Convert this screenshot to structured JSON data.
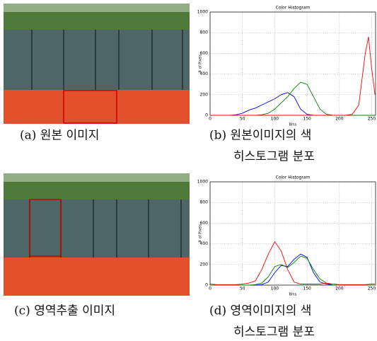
{
  "captions": {
    "a": "(a) 원본 이미지",
    "b": [
      "(b) 원본이미지의 색",
      "히스토그램 분포"
    ],
    "c": "(c) 영역추출 이미지",
    "d": [
      "(d) 영역이미지의 색",
      "히스토그램 분포"
    ]
  },
  "chart_data": [
    {
      "type": "line",
      "title": "Color Histogram",
      "x_label": "Bins",
      "y_label": "# of Pixels",
      "x": [
        0,
        10,
        20,
        30,
        40,
        50,
        60,
        70,
        80,
        90,
        100,
        110,
        120,
        130,
        140,
        150,
        160,
        170,
        180,
        190,
        200,
        210,
        220,
        230,
        240,
        245,
        250,
        255
      ],
      "xlim": [
        0,
        256
      ],
      "xticks": [
        0,
        50,
        100,
        150,
        200,
        250
      ],
      "ylim": [
        0,
        1000
      ],
      "yticks": [
        0,
        200,
        400,
        600,
        800,
        1000
      ],
      "grid": true,
      "series": [
        {
          "color": "#0000ff",
          "values": [
            0,
            0,
            0,
            0,
            5,
            20,
            50,
            70,
            100,
            130,
            160,
            200,
            220,
            180,
            60,
            10,
            0,
            0,
            0,
            0,
            0,
            0,
            0,
            0,
            0,
            0,
            0,
            0
          ]
        },
        {
          "color": "#008000",
          "values": [
            0,
            0,
            0,
            0,
            0,
            0,
            0,
            0,
            5,
            20,
            60,
            120,
            180,
            260,
            320,
            300,
            180,
            60,
            10,
            0,
            0,
            0,
            0,
            0,
            0,
            0,
            0,
            0
          ]
        },
        {
          "color": "#ff0000",
          "values": [
            0,
            0,
            0,
            0,
            0,
            0,
            0,
            0,
            0,
            0,
            0,
            0,
            0,
            0,
            0,
            0,
            0,
            0,
            0,
            0,
            0,
            0,
            10,
            100,
            600,
            760,
            450,
            200
          ]
        }
      ]
    },
    {
      "type": "line",
      "title": "Color Histogram",
      "x_label": "Bins",
      "y_label": "# of Pixels",
      "x": [
        0,
        10,
        20,
        30,
        40,
        50,
        60,
        70,
        80,
        90,
        100,
        110,
        120,
        130,
        140,
        150,
        160,
        170,
        180,
        190,
        200,
        210,
        220,
        230,
        240,
        250,
        255
      ],
      "xlim": [
        0,
        256
      ],
      "xticks": [
        0,
        50,
        100,
        150,
        200,
        250
      ],
      "ylim": [
        0,
        1000
      ],
      "yticks": [
        0,
        200,
        400,
        600,
        800,
        1000
      ],
      "grid": true,
      "series": [
        {
          "color": "#0000ff",
          "values": [
            0,
            0,
            0,
            0,
            0,
            0,
            0,
            0,
            5,
            30,
            120,
            190,
            180,
            250,
            300,
            270,
            120,
            30,
            10,
            0,
            0,
            0,
            0,
            0,
            0,
            0,
            0
          ]
        },
        {
          "color": "#008000",
          "values": [
            0,
            0,
            0,
            0,
            0,
            0,
            0,
            5,
            20,
            80,
            180,
            200,
            170,
            220,
            280,
            260,
            150,
            60,
            20,
            0,
            0,
            0,
            0,
            0,
            0,
            0,
            0
          ]
        },
        {
          "color": "#ff0000",
          "values": [
            10,
            5,
            5,
            5,
            5,
            10,
            20,
            40,
            150,
            300,
            420,
            330,
            150,
            30,
            10,
            10,
            10,
            10,
            20,
            10,
            5,
            5,
            5,
            5,
            5,
            10,
            10
          ]
        }
      ]
    }
  ]
}
